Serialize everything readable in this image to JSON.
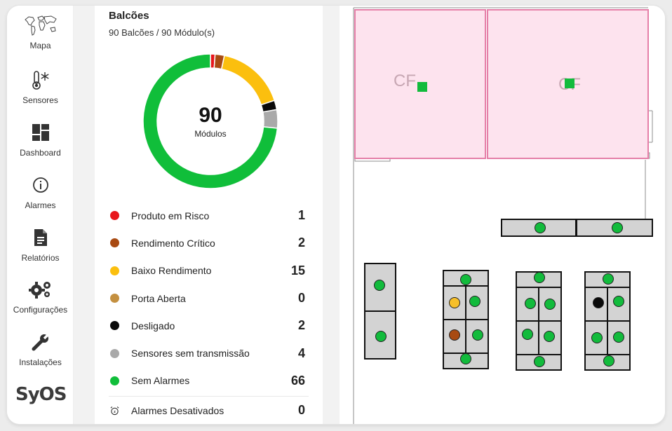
{
  "sidebar": {
    "items": [
      {
        "label": "Mapa",
        "icon": "world-map-icon"
      },
      {
        "label": "Sensores",
        "icon": "thermometer-snowflake-icon"
      },
      {
        "label": "Dashboard",
        "icon": "dashboard-icon"
      },
      {
        "label": "Alarmes",
        "icon": "info-icon"
      },
      {
        "label": "Relatórios",
        "icon": "document-icon"
      },
      {
        "label": "Configurações",
        "icon": "gears-icon"
      },
      {
        "label": "Instalações",
        "icon": "wrench-icon"
      }
    ],
    "logo": "SyOS"
  },
  "panel": {
    "title": "Balcões",
    "subtitle": "90 Balcões / 90 Módulo(s)",
    "total": "90",
    "total_unit": "Módulos",
    "legend": [
      {
        "label": "Produto em Risco",
        "count": "1",
        "color": "#e8161b"
      },
      {
        "label": "Rendimento Crítico",
        "count": "2",
        "color": "#a84a12"
      },
      {
        "label": "Baixo Rendimento",
        "count": "15",
        "color": "#fbbf0e"
      },
      {
        "label": "Porta Aberta",
        "count": "0",
        "color": "#c49040"
      },
      {
        "label": "Desligado",
        "count": "2",
        "color": "#0a0a0a"
      },
      {
        "label": "Sensores sem transmissão",
        "count": "4",
        "color": "#a9a9a9"
      },
      {
        "label": "Sem Alarmes",
        "count": "66",
        "color": "#10be3a"
      }
    ],
    "disabled_alarms": {
      "label": "Alarmes Desativados",
      "count": "0",
      "icon": "alarm-clock-off-icon"
    }
  },
  "map": {
    "cold_room_labels": [
      "CF",
      "CF"
    ],
    "colors": {
      "ok": "#12bb3c",
      "warn": "#f6bf2a",
      "critical": "#a84a12",
      "off": "#0a0a0a",
      "room_fill": "#fde3ee",
      "room_border": "#e57fa8",
      "module_fill": "#d3d3d3"
    }
  }
}
